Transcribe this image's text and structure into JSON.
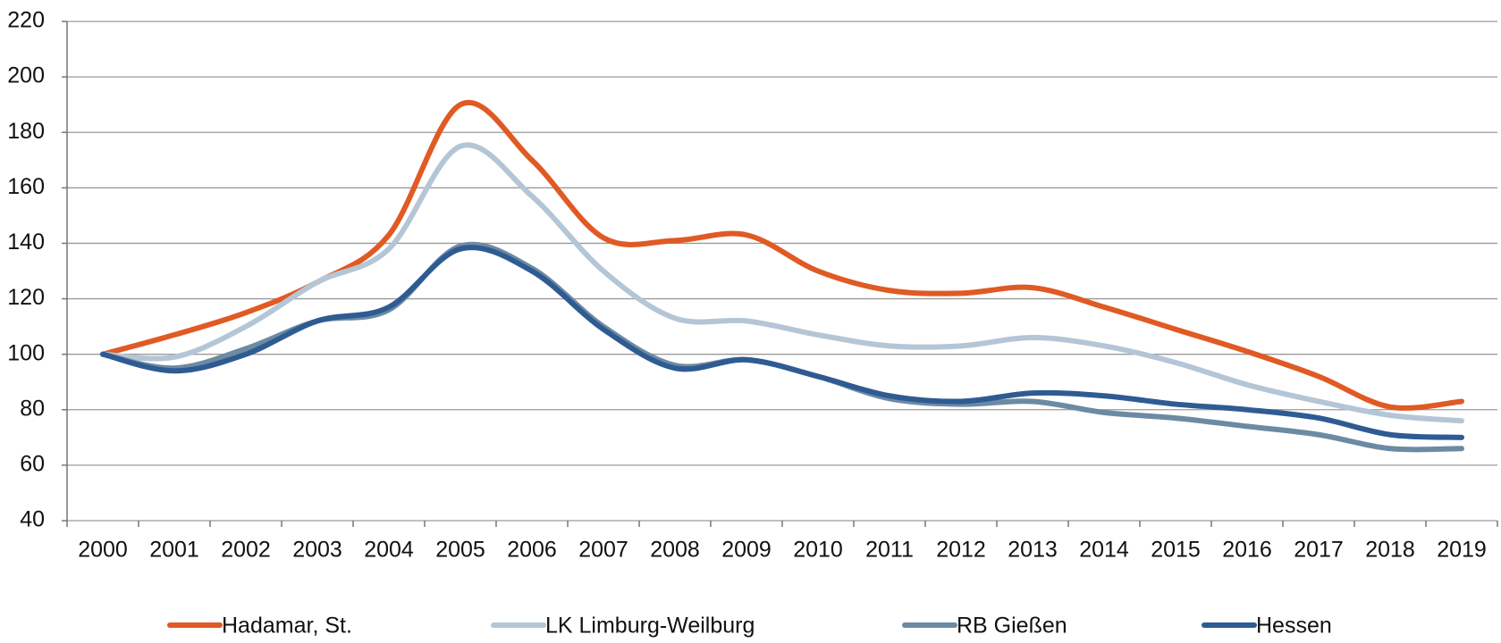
{
  "chart_data": {
    "type": "line",
    "categories": [
      "2000",
      "2001",
      "2002",
      "2003",
      "2004",
      "2005",
      "2006",
      "2007",
      "2008",
      "2009",
      "2010",
      "2011",
      "2012",
      "2013",
      "2014",
      "2015",
      "2016",
      "2017",
      "2018",
      "2019"
    ],
    "series": [
      {
        "name": "Hadamar, St.",
        "color": "#e05a24",
        "values": [
          100,
          107,
          115,
          126,
          143,
          190,
          170,
          142,
          141,
          143,
          130,
          123,
          122,
          124,
          117,
          109,
          101,
          92,
          81,
          83
        ]
      },
      {
        "name": "LK Limburg-Weilburg",
        "color": "#b4c6d6",
        "values": [
          100,
          99,
          110,
          126,
          138,
          175,
          157,
          130,
          113,
          112,
          107,
          103,
          103,
          106,
          103,
          97,
          89,
          83,
          78,
          76
        ]
      },
      {
        "name": "RB Gießen",
        "color": "#6d8aa3",
        "values": [
          100,
          95,
          102,
          112,
          116,
          139,
          131,
          110,
          96,
          98,
          92,
          84,
          82,
          83,
          79,
          77,
          74,
          71,
          66,
          66
        ]
      },
      {
        "name": "Hessen",
        "color": "#2f5b93",
        "values": [
          100,
          94,
          100,
          112,
          117,
          138,
          130,
          109,
          95,
          98,
          92,
          85,
          83,
          86,
          85,
          82,
          80,
          77,
          71,
          70
        ]
      }
    ],
    "ylim": [
      40,
      220
    ],
    "yticks": [
      40,
      60,
      80,
      100,
      120,
      140,
      160,
      180,
      200,
      220
    ],
    "grid": true
  }
}
